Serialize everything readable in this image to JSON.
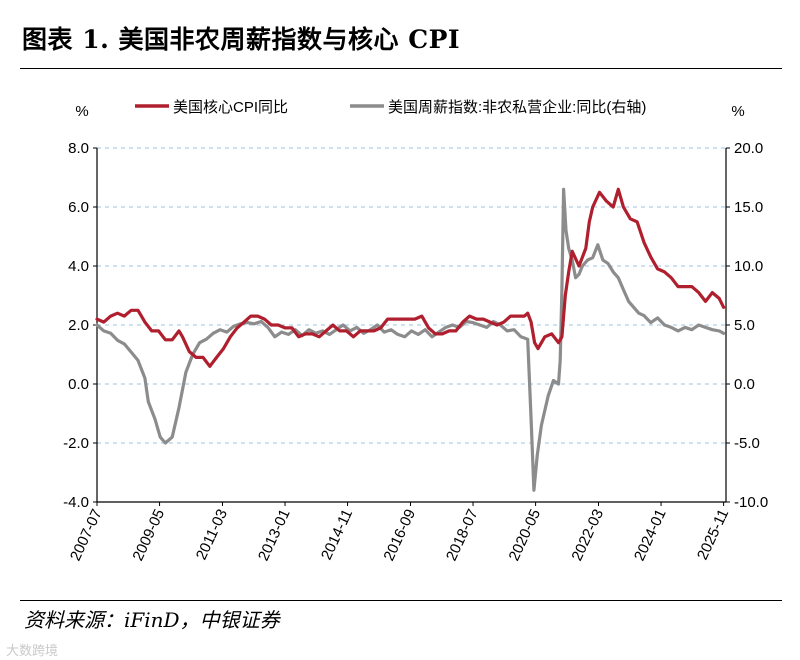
{
  "title": "图表 1. 美国非农周薪指数与核心 CPI",
  "source": "资料来源：iFinD，中银证券",
  "watermark": "大数跨境",
  "chart_data": {
    "type": "line",
    "left_unit": "%",
    "right_unit": "%",
    "y_left": {
      "min": -4.0,
      "max": 8.0,
      "ticks": [
        "-4.0",
        "-2.0",
        "0.0",
        "2.0",
        "4.0",
        "6.0",
        "8.0"
      ]
    },
    "y_right": {
      "min": -10.0,
      "max": 20.0,
      "ticks": [
        "-10.0",
        "-5.0",
        "0.0",
        "5.0",
        "10.0",
        "15.0",
        "20.0"
      ]
    },
    "x_range": [
      2007.5,
      2025.9
    ],
    "x_ticks": [
      {
        "label": "2007-07",
        "t": 2007.5
      },
      {
        "label": "2009-05",
        "t": 2009.33
      },
      {
        "label": "2011-03",
        "t": 2011.17
      },
      {
        "label": "2013-01",
        "t": 2013.0
      },
      {
        "label": "2014-11",
        "t": 2014.83
      },
      {
        "label": "2016-09",
        "t": 2016.67
      },
      {
        "label": "2018-07",
        "t": 2018.5
      },
      {
        "label": "2020-05",
        "t": 2020.33
      },
      {
        "label": "2022-03",
        "t": 2022.17
      },
      {
        "label": "2024-01",
        "t": 2024.0
      },
      {
        "label": "2025-11",
        "t": 2025.83
      }
    ],
    "grid": "horizontal-dashed",
    "legend_position": "top",
    "series": [
      {
        "name": "美国核心CPI同比",
        "axis": "left",
        "color": "#b01f2e",
        "points": [
          [
            2007.5,
            2.2
          ],
          [
            2007.7,
            2.1
          ],
          [
            2007.9,
            2.3
          ],
          [
            2008.1,
            2.4
          ],
          [
            2008.3,
            2.3
          ],
          [
            2008.5,
            2.5
          ],
          [
            2008.7,
            2.5
          ],
          [
            2008.9,
            2.1
          ],
          [
            2009.1,
            1.8
          ],
          [
            2009.3,
            1.8
          ],
          [
            2009.5,
            1.5
          ],
          [
            2009.7,
            1.5
          ],
          [
            2009.9,
            1.8
          ],
          [
            2010.0,
            1.6
          ],
          [
            2010.2,
            1.1
          ],
          [
            2010.4,
            0.9
          ],
          [
            2010.6,
            0.9
          ],
          [
            2010.8,
            0.6
          ],
          [
            2011.0,
            0.9
          ],
          [
            2011.2,
            1.2
          ],
          [
            2011.4,
            1.6
          ],
          [
            2011.6,
            1.9
          ],
          [
            2011.8,
            2.1
          ],
          [
            2012.0,
            2.3
          ],
          [
            2012.2,
            2.3
          ],
          [
            2012.4,
            2.2
          ],
          [
            2012.6,
            2.0
          ],
          [
            2012.8,
            2.0
          ],
          [
            2013.0,
            1.9
          ],
          [
            2013.2,
            1.9
          ],
          [
            2013.4,
            1.6
          ],
          [
            2013.6,
            1.7
          ],
          [
            2013.8,
            1.7
          ],
          [
            2014.0,
            1.6
          ],
          [
            2014.2,
            1.8
          ],
          [
            2014.4,
            2.0
          ],
          [
            2014.6,
            1.8
          ],
          [
            2014.8,
            1.8
          ],
          [
            2015.0,
            1.6
          ],
          [
            2015.2,
            1.8
          ],
          [
            2015.4,
            1.8
          ],
          [
            2015.6,
            1.8
          ],
          [
            2015.8,
            1.9
          ],
          [
            2016.0,
            2.2
          ],
          [
            2016.2,
            2.2
          ],
          [
            2016.4,
            2.2
          ],
          [
            2016.6,
            2.2
          ],
          [
            2016.8,
            2.2
          ],
          [
            2017.0,
            2.3
          ],
          [
            2017.2,
            1.9
          ],
          [
            2017.4,
            1.7
          ],
          [
            2017.6,
            1.7
          ],
          [
            2017.8,
            1.8
          ],
          [
            2018.0,
            1.8
          ],
          [
            2018.2,
            2.1
          ],
          [
            2018.4,
            2.3
          ],
          [
            2018.6,
            2.2
          ],
          [
            2018.8,
            2.2
          ],
          [
            2019.0,
            2.1
          ],
          [
            2019.2,
            2.0
          ],
          [
            2019.4,
            2.1
          ],
          [
            2019.6,
            2.3
          ],
          [
            2019.8,
            2.3
          ],
          [
            2020.0,
            2.3
          ],
          [
            2020.1,
            2.4
          ],
          [
            2020.2,
            2.1
          ],
          [
            2020.3,
            1.4
          ],
          [
            2020.4,
            1.2
          ],
          [
            2020.6,
            1.6
          ],
          [
            2020.8,
            1.7
          ],
          [
            2021.0,
            1.4
          ],
          [
            2021.1,
            1.6
          ],
          [
            2021.2,
            3.0
          ],
          [
            2021.3,
            3.8
          ],
          [
            2021.4,
            4.5
          ],
          [
            2021.6,
            4.0
          ],
          [
            2021.8,
            4.6
          ],
          [
            2021.9,
            5.5
          ],
          [
            2022.0,
            6.0
          ],
          [
            2022.2,
            6.5
          ],
          [
            2022.4,
            6.2
          ],
          [
            2022.6,
            6.0
          ],
          [
            2022.75,
            6.6
          ],
          [
            2022.9,
            6.0
          ],
          [
            2023.1,
            5.6
          ],
          [
            2023.3,
            5.5
          ],
          [
            2023.5,
            4.8
          ],
          [
            2023.7,
            4.3
          ],
          [
            2023.9,
            3.9
          ],
          [
            2024.1,
            3.8
          ],
          [
            2024.3,
            3.6
          ],
          [
            2024.5,
            3.3
          ],
          [
            2024.7,
            3.3
          ],
          [
            2024.9,
            3.3
          ],
          [
            2025.1,
            3.1
          ],
          [
            2025.3,
            2.8
          ],
          [
            2025.5,
            3.1
          ],
          [
            2025.7,
            2.9
          ],
          [
            2025.83,
            2.6
          ]
        ]
      },
      {
        "name": "美国周薪指数:非农私营企业:同比(右轴)",
        "axis": "right",
        "color": "#8c8c8c",
        "points": [
          [
            2007.5,
            5.0
          ],
          [
            2007.7,
            4.5
          ],
          [
            2007.9,
            4.3
          ],
          [
            2008.1,
            3.7
          ],
          [
            2008.3,
            3.4
          ],
          [
            2008.5,
            2.7
          ],
          [
            2008.7,
            2.0
          ],
          [
            2008.9,
            0.5
          ],
          [
            2009.0,
            -1.5
          ],
          [
            2009.2,
            -3.0
          ],
          [
            2009.35,
            -4.5
          ],
          [
            2009.5,
            -5.0
          ],
          [
            2009.7,
            -4.5
          ],
          [
            2009.9,
            -2.0
          ],
          [
            2010.1,
            1.0
          ],
          [
            2010.3,
            2.5
          ],
          [
            2010.5,
            3.5
          ],
          [
            2010.7,
            3.8
          ],
          [
            2010.9,
            4.3
          ],
          [
            2011.1,
            4.6
          ],
          [
            2011.3,
            4.4
          ],
          [
            2011.5,
            4.9
          ],
          [
            2011.7,
            5.1
          ],
          [
            2011.9,
            5.2
          ],
          [
            2012.1,
            5.1
          ],
          [
            2012.3,
            5.3
          ],
          [
            2012.5,
            4.8
          ],
          [
            2012.7,
            4.0
          ],
          [
            2012.9,
            4.4
          ],
          [
            2013.1,
            4.2
          ],
          [
            2013.3,
            4.6
          ],
          [
            2013.5,
            4.1
          ],
          [
            2013.7,
            4.6
          ],
          [
            2013.9,
            4.3
          ],
          [
            2014.1,
            4.5
          ],
          [
            2014.3,
            4.2
          ],
          [
            2014.5,
            4.6
          ],
          [
            2014.7,
            5.0
          ],
          [
            2014.9,
            4.5
          ],
          [
            2015.1,
            4.8
          ],
          [
            2015.3,
            4.3
          ],
          [
            2015.5,
            4.6
          ],
          [
            2015.7,
            5.0
          ],
          [
            2015.9,
            4.4
          ],
          [
            2016.1,
            4.6
          ],
          [
            2016.3,
            4.2
          ],
          [
            2016.5,
            4.0
          ],
          [
            2016.7,
            4.5
          ],
          [
            2016.9,
            4.2
          ],
          [
            2017.1,
            4.6
          ],
          [
            2017.3,
            4.0
          ],
          [
            2017.5,
            4.4
          ],
          [
            2017.7,
            4.8
          ],
          [
            2017.9,
            5.0
          ],
          [
            2018.1,
            4.8
          ],
          [
            2018.3,
            5.3
          ],
          [
            2018.5,
            5.2
          ],
          [
            2018.7,
            5.0
          ],
          [
            2018.9,
            4.8
          ],
          [
            2019.1,
            5.3
          ],
          [
            2019.3,
            5.0
          ],
          [
            2019.5,
            4.5
          ],
          [
            2019.7,
            4.6
          ],
          [
            2019.9,
            4.0
          ],
          [
            2020.1,
            3.8
          ],
          [
            2020.2,
            -3.0
          ],
          [
            2020.28,
            -9.0
          ],
          [
            2020.38,
            -6.0
          ],
          [
            2020.5,
            -3.5
          ],
          [
            2020.7,
            -1.0
          ],
          [
            2020.85,
            0.3
          ],
          [
            2021.0,
            0.0
          ],
          [
            2021.05,
            2.0
          ],
          [
            2021.1,
            8.0
          ],
          [
            2021.15,
            16.5
          ],
          [
            2021.22,
            13.0
          ],
          [
            2021.3,
            11.5
          ],
          [
            2021.4,
            10.5
          ],
          [
            2021.5,
            9.0
          ],
          [
            2021.6,
            9.3
          ],
          [
            2021.7,
            10.0
          ],
          [
            2021.85,
            10.5
          ],
          [
            2022.0,
            10.7
          ],
          [
            2022.15,
            11.8
          ],
          [
            2022.3,
            10.5
          ],
          [
            2022.45,
            10.2
          ],
          [
            2022.6,
            9.5
          ],
          [
            2022.75,
            9.0
          ],
          [
            2022.9,
            8.0
          ],
          [
            2023.05,
            7.0
          ],
          [
            2023.2,
            6.5
          ],
          [
            2023.35,
            6.0
          ],
          [
            2023.5,
            5.8
          ],
          [
            2023.7,
            5.2
          ],
          [
            2023.9,
            5.6
          ],
          [
            2024.1,
            5.0
          ],
          [
            2024.3,
            4.8
          ],
          [
            2024.5,
            4.5
          ],
          [
            2024.7,
            4.8
          ],
          [
            2024.9,
            4.6
          ],
          [
            2025.1,
            5.0
          ],
          [
            2025.3,
            4.8
          ],
          [
            2025.5,
            4.6
          ],
          [
            2025.7,
            4.5
          ],
          [
            2025.83,
            4.3
          ]
        ]
      }
    ]
  }
}
